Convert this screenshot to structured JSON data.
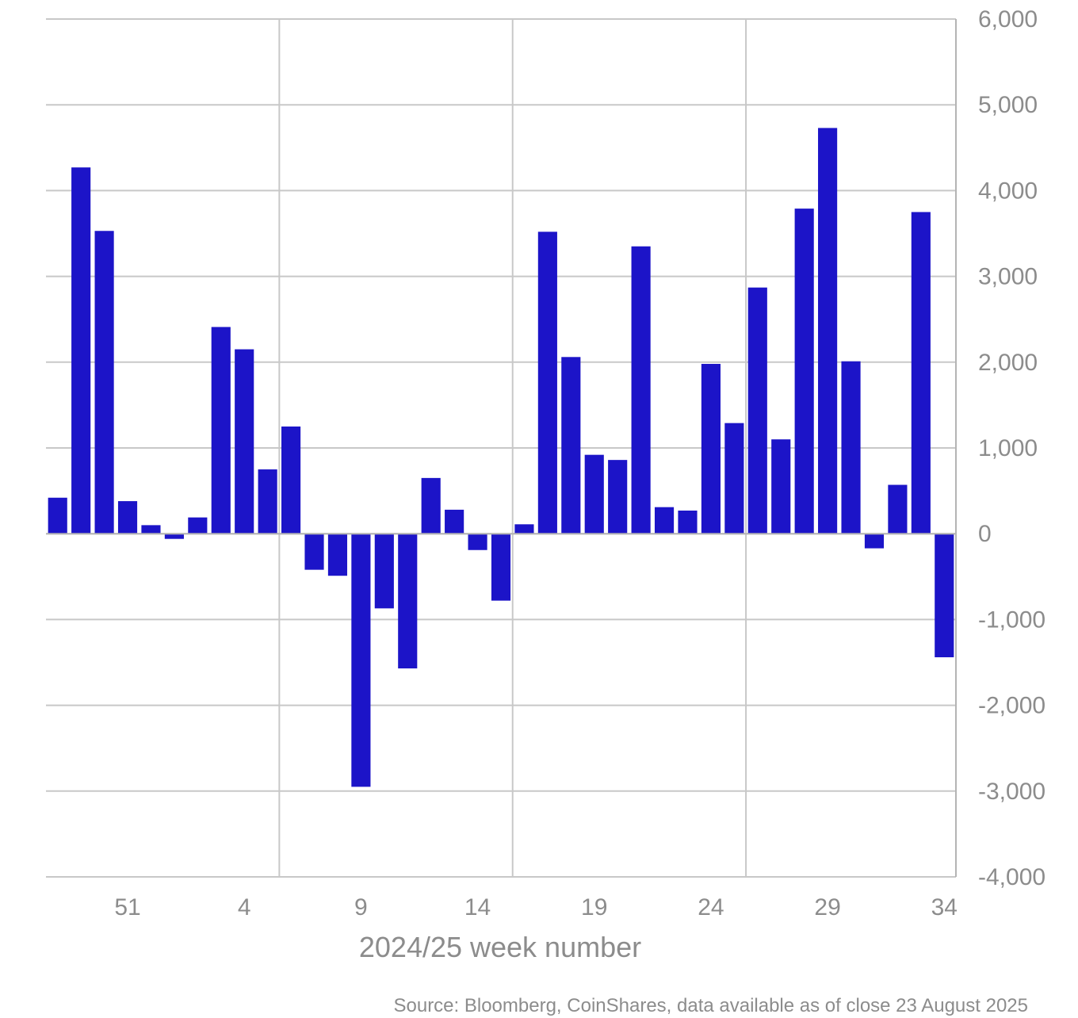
{
  "chart_data": {
    "type": "bar",
    "title": "",
    "xlabel": "2024/25 week number",
    "ylabel": "",
    "ylim": [
      -4000,
      6000
    ],
    "yticks": [
      "6,000",
      "5,000",
      "4,000",
      "3,000",
      "2,000",
      "1,000",
      "0",
      "-1,000",
      "-2,000",
      "-3,000",
      "-4,000"
    ],
    "ytick_values": [
      6000,
      5000,
      4000,
      3000,
      2000,
      1000,
      0,
      -1000,
      -2000,
      -3000,
      -4000
    ],
    "xtick_labels": [
      "51",
      "4",
      "9",
      "14",
      "19",
      "24",
      "29",
      "34"
    ],
    "categories": [
      "48",
      "49",
      "50",
      "51",
      "52",
      "1",
      "2",
      "3",
      "4",
      "5",
      "6",
      "7",
      "8",
      "9",
      "10",
      "11",
      "12",
      "13",
      "14",
      "15",
      "16",
      "17",
      "18",
      "19",
      "20",
      "21",
      "22",
      "23",
      "24",
      "25",
      "26",
      "27",
      "28",
      "29",
      "30",
      "31",
      "32",
      "33",
      "34"
    ],
    "values": [
      420,
      4270,
      3530,
      380,
      100,
      -60,
      190,
      2410,
      2150,
      750,
      1250,
      -420,
      -490,
      -2950,
      -870,
      -1570,
      650,
      280,
      -190,
      -780,
      110,
      3520,
      2060,
      920,
      860,
      3350,
      310,
      270,
      1980,
      1290,
      2870,
      1100,
      3790,
      4730,
      2010,
      -170,
      570,
      3750,
      -1440
    ],
    "grid": true,
    "bar_color": "#1c14c8",
    "source": "Source: Bloomberg, CoinShares, data available as of close 23 August 2025"
  }
}
